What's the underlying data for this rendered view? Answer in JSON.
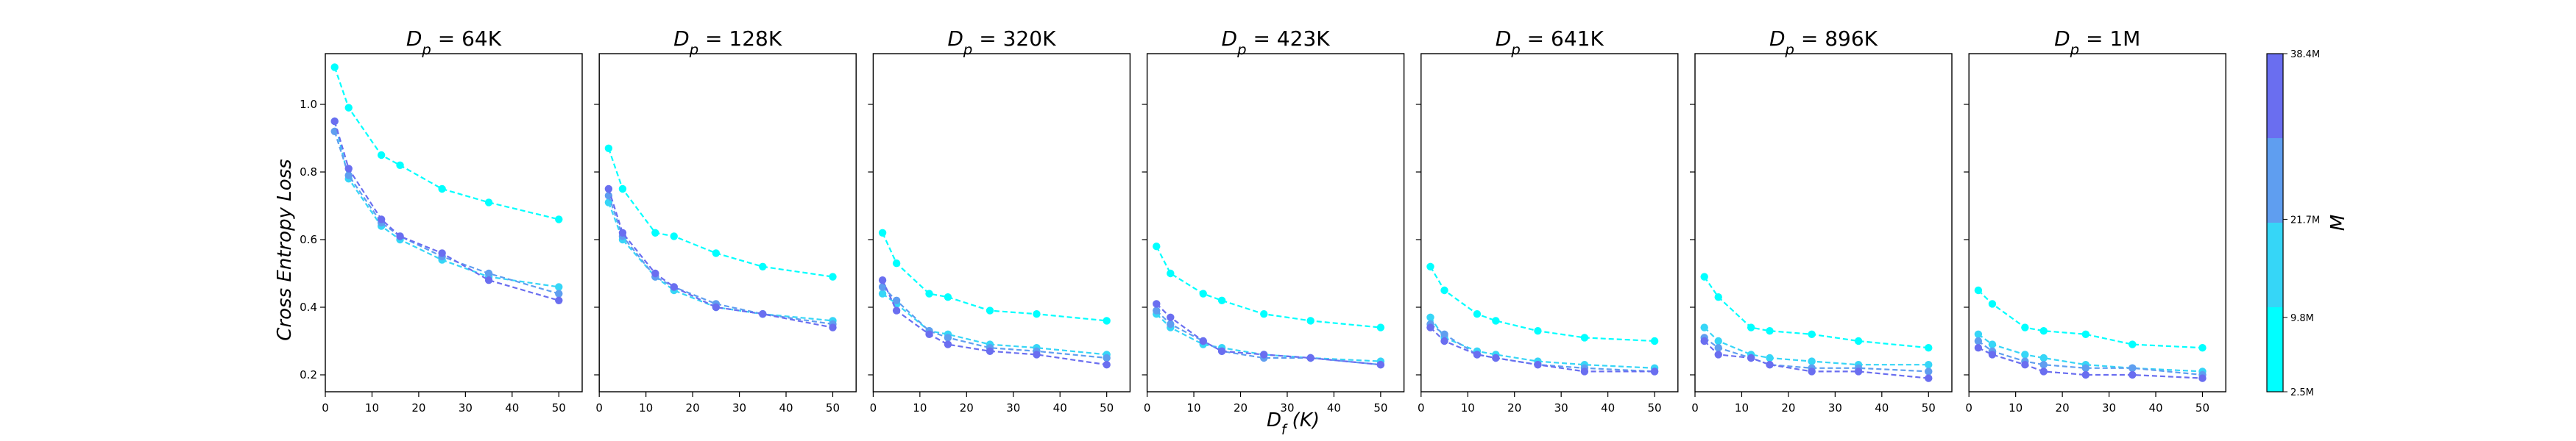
{
  "figure": {
    "shared_xlabel": "D_f (K)",
    "shared_ylabel": "Cross Entropy Loss",
    "colorbar": {
      "label": "M",
      "tick_labels": [
        "2.5M",
        "9.8M",
        "21.7M",
        "38.4M"
      ],
      "colors": [
        "#00ffff",
        "#36d6f7",
        "#5f9ef0",
        "#6a6ef0"
      ]
    }
  },
  "chart_data": [
    {
      "type": "line",
      "title": "D_p = 64K",
      "x": [
        2,
        5,
        12,
        16,
        25,
        35,
        50
      ],
      "xlim": [
        0,
        55
      ],
      "ylim": [
        0.15,
        1.15
      ],
      "xticks": [
        0,
        10,
        20,
        30,
        40,
        50
      ],
      "yticks": [
        0.2,
        0.4,
        0.6,
        0.8,
        1.0
      ],
      "show_yticks": true,
      "series": [
        {
          "color": "#00ffff",
          "values": [
            1.11,
            0.99,
            0.85,
            0.82,
            0.75,
            0.71,
            0.66
          ]
        },
        {
          "color": "#36d6f7",
          "values": [
            0.95,
            0.78,
            0.64,
            0.6,
            0.54,
            0.49,
            0.46
          ]
        },
        {
          "color": "#5f9ef0",
          "values": [
            0.92,
            0.79,
            0.65,
            0.61,
            0.55,
            0.5,
            0.44
          ]
        },
        {
          "color": "#6a6ef0",
          "values": [
            0.95,
            0.81,
            0.66,
            0.61,
            0.56,
            0.48,
            0.42
          ]
        }
      ]
    },
    {
      "type": "line",
      "title": "D_p = 128K",
      "x": [
        2,
        5,
        12,
        16,
        25,
        35,
        50
      ],
      "xlim": [
        0,
        55
      ],
      "ylim": [
        0.15,
        1.15
      ],
      "xticks": [
        0,
        10,
        20,
        30,
        40,
        50
      ],
      "yticks": [
        0.2,
        0.4,
        0.6,
        0.8,
        1.0
      ],
      "show_yticks": false,
      "series": [
        {
          "color": "#00ffff",
          "values": [
            0.87,
            0.75,
            0.62,
            0.61,
            0.56,
            0.52,
            0.49
          ]
        },
        {
          "color": "#36d6f7",
          "values": [
            0.71,
            0.6,
            0.49,
            0.45,
            0.4,
            0.38,
            0.36
          ]
        },
        {
          "color": "#5f9ef0",
          "values": [
            0.73,
            0.61,
            0.49,
            0.46,
            0.41,
            0.38,
            0.35
          ]
        },
        {
          "color": "#6a6ef0",
          "values": [
            0.75,
            0.62,
            0.5,
            0.46,
            0.4,
            0.38,
            0.34
          ]
        }
      ]
    },
    {
      "type": "line",
      "title": "D_p = 320K",
      "x": [
        2,
        5,
        12,
        16,
        25,
        35,
        50
      ],
      "xlim": [
        0,
        55
      ],
      "ylim": [
        0.15,
        1.15
      ],
      "xticks": [
        0,
        10,
        20,
        30,
        40,
        50
      ],
      "yticks": [
        0.2,
        0.4,
        0.6,
        0.8,
        1.0
      ],
      "show_yticks": false,
      "series": [
        {
          "color": "#00ffff",
          "values": [
            0.62,
            0.53,
            0.44,
            0.43,
            0.39,
            0.38,
            0.36
          ]
        },
        {
          "color": "#36d6f7",
          "values": [
            0.44,
            0.41,
            0.33,
            0.32,
            0.29,
            0.28,
            0.26
          ]
        },
        {
          "color": "#5f9ef0",
          "values": [
            0.46,
            0.42,
            0.33,
            0.31,
            0.28,
            0.27,
            0.25
          ]
        },
        {
          "color": "#6a6ef0",
          "values": [
            0.48,
            0.39,
            0.32,
            0.29,
            0.27,
            0.26,
            0.23
          ]
        }
      ]
    },
    {
      "type": "line",
      "title": "D_p = 423K",
      "x": [
        2,
        5,
        12,
        16,
        25,
        35,
        50
      ],
      "xlim": [
        0,
        55
      ],
      "ylim": [
        0.15,
        1.15
      ],
      "xticks": [
        0,
        10,
        20,
        30,
        40,
        50
      ],
      "yticks": [
        0.2,
        0.4,
        0.6,
        0.8,
        1.0
      ],
      "show_yticks": false,
      "series": [
        {
          "color": "#00ffff",
          "values": [
            0.58,
            0.5,
            0.44,
            0.42,
            0.38,
            0.36,
            0.34
          ]
        },
        {
          "color": "#36d6f7",
          "values": [
            0.38,
            0.34,
            0.29,
            0.28,
            0.26,
            0.25,
            0.24
          ]
        },
        {
          "color": "#5f9ef0",
          "values": [
            0.39,
            0.35,
            0.3,
            0.27,
            0.25,
            0.25,
            0.23
          ]
        },
        {
          "color": "#6a6ef0",
          "values": [
            0.41,
            0.37,
            0.3,
            0.27,
            0.26,
            0.25,
            0.23
          ]
        }
      ]
    },
    {
      "type": "line",
      "title": "D_p = 641K",
      "x": [
        2,
        5,
        12,
        16,
        25,
        35,
        50
      ],
      "xlim": [
        0,
        55
      ],
      "ylim": [
        0.15,
        1.15
      ],
      "xticks": [
        0,
        10,
        20,
        30,
        40,
        50
      ],
      "yticks": [
        0.2,
        0.4,
        0.6,
        0.8,
        1.0
      ],
      "show_yticks": false,
      "series": [
        {
          "color": "#00ffff",
          "values": [
            0.52,
            0.45,
            0.38,
            0.36,
            0.33,
            0.31,
            0.3
          ]
        },
        {
          "color": "#36d6f7",
          "values": [
            0.37,
            0.31,
            0.27,
            0.26,
            0.24,
            0.23,
            0.22
          ]
        },
        {
          "color": "#5f9ef0",
          "values": [
            0.35,
            0.32,
            0.26,
            0.25,
            0.23,
            0.22,
            0.21
          ]
        },
        {
          "color": "#6a6ef0",
          "values": [
            0.34,
            0.3,
            0.26,
            0.25,
            0.23,
            0.21,
            0.21
          ]
        }
      ]
    },
    {
      "type": "line",
      "title": "D_p = 896K",
      "x": [
        2,
        5,
        12,
        16,
        25,
        35,
        50
      ],
      "xlim": [
        0,
        55
      ],
      "ylim": [
        0.15,
        1.15
      ],
      "xticks": [
        0,
        10,
        20,
        30,
        40,
        50
      ],
      "yticks": [
        0.2,
        0.4,
        0.6,
        0.8,
        1.0
      ],
      "show_yticks": false,
      "series": [
        {
          "color": "#00ffff",
          "values": [
            0.49,
            0.43,
            0.34,
            0.33,
            0.32,
            0.3,
            0.28
          ]
        },
        {
          "color": "#36d6f7",
          "values": [
            0.34,
            0.3,
            0.26,
            0.25,
            0.24,
            0.23,
            0.23
          ]
        },
        {
          "color": "#5f9ef0",
          "values": [
            0.31,
            0.28,
            0.25,
            0.23,
            0.22,
            0.22,
            0.21
          ]
        },
        {
          "color": "#6a6ef0",
          "values": [
            0.3,
            0.26,
            0.25,
            0.23,
            0.21,
            0.21,
            0.19
          ]
        }
      ]
    },
    {
      "type": "line",
      "title": "D_p = 1M",
      "x": [
        2,
        5,
        12,
        16,
        25,
        35,
        50
      ],
      "xlim": [
        0,
        55
      ],
      "ylim": [
        0.15,
        1.15
      ],
      "xticks": [
        0,
        10,
        20,
        30,
        40,
        50
      ],
      "yticks": [
        0.2,
        0.4,
        0.6,
        0.8,
        1.0
      ],
      "show_yticks": false,
      "series": [
        {
          "color": "#00ffff",
          "values": [
            0.45,
            0.41,
            0.34,
            0.33,
            0.32,
            0.29,
            0.28
          ]
        },
        {
          "color": "#36d6f7",
          "values": [
            0.32,
            0.29,
            0.26,
            0.25,
            0.23,
            0.22,
            0.21
          ]
        },
        {
          "color": "#5f9ef0",
          "values": [
            0.3,
            0.27,
            0.24,
            0.23,
            0.22,
            0.22,
            0.2
          ]
        },
        {
          "color": "#6a6ef0",
          "values": [
            0.28,
            0.26,
            0.23,
            0.21,
            0.2,
            0.2,
            0.19
          ]
        }
      ]
    }
  ]
}
